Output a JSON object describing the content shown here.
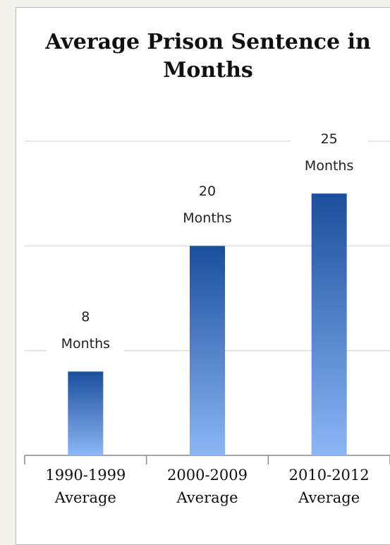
{
  "chart_data": {
    "type": "bar",
    "title": "Average Prison Sentence in Months",
    "categories": [
      "1990-1999 Average",
      "2000-2009 Average",
      "2010-2012 Average"
    ],
    "values": [
      8,
      20,
      25
    ],
    "value_labels": [
      "8 Months",
      "20 Months",
      "25 Months"
    ],
    "color": "#1a4f9c",
    "ylim": [
      0,
      30
    ],
    "yticks": [
      0,
      10,
      20,
      30
    ],
    "grid": true
  }
}
